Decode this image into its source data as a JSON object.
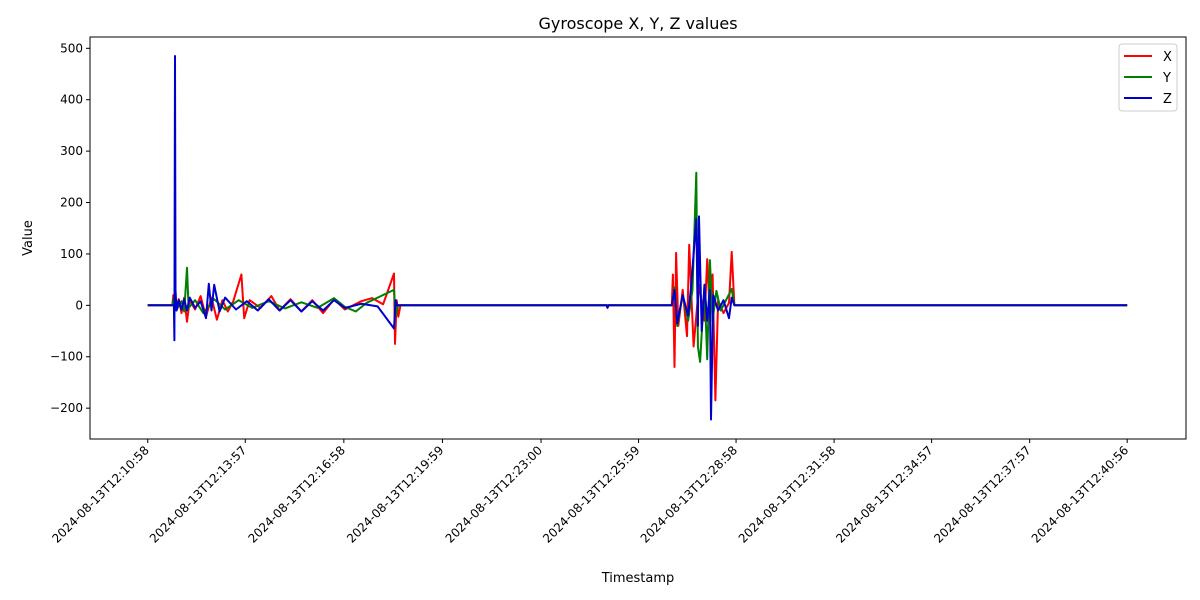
{
  "chart_data": {
    "type": "line",
    "title": "Gyroscope X, Y, Z values",
    "xlabel": "Timestamp",
    "ylabel": "Value",
    "x_ticks": [
      "2024-08-13T12:10:58",
      "2024-08-13T12:13:57",
      "2024-08-13T12:16:58",
      "2024-08-13T12:19:59",
      "2024-08-13T12:23:00",
      "2024-08-13T12:25:59",
      "2024-08-13T12:28:58",
      "2024-08-13T12:31:58",
      "2024-08-13T12:34:57",
      "2024-08-13T12:37:57",
      "2024-08-13T12:40:56"
    ],
    "xlim": [
      "2024-08-13T12:09:12",
      "2024-08-13T12:42:44"
    ],
    "y_ticks": [
      500,
      400,
      300,
      200,
      100,
      0,
      -100,
      -200
    ],
    "y_tick_labels": [
      "500",
      "400",
      "300",
      "200",
      "100",
      "0",
      "−100",
      "−200"
    ],
    "ylim": [
      -260,
      522
    ],
    "grid": false,
    "legend_position": "top-right",
    "series": [
      {
        "name": "X",
        "color": "#ff0000",
        "points": [
          [
            "2024-08-13T12:10:58",
            0
          ],
          [
            "2024-08-13T12:11:43",
            0
          ],
          [
            "2024-08-13T12:11:45",
            20
          ],
          [
            "2024-08-13T12:11:47",
            -10
          ],
          [
            "2024-08-13T12:11:55",
            12
          ],
          [
            "2024-08-13T12:12:00",
            -15
          ],
          [
            "2024-08-13T12:12:05",
            15
          ],
          [
            "2024-08-13T12:12:10",
            -32
          ],
          [
            "2024-08-13T12:12:15",
            10
          ],
          [
            "2024-08-13T12:12:25",
            -8
          ],
          [
            "2024-08-13T12:12:35",
            18
          ],
          [
            "2024-08-13T12:12:45",
            -22
          ],
          [
            "2024-08-13T12:12:55",
            15
          ],
          [
            "2024-08-13T12:13:05",
            -28
          ],
          [
            "2024-08-13T12:13:15",
            10
          ],
          [
            "2024-08-13T12:13:25",
            -12
          ],
          [
            "2024-08-13T12:13:35",
            8
          ],
          [
            "2024-08-13T12:13:50",
            60
          ],
          [
            "2024-08-13T12:13:55",
            -25
          ],
          [
            "2024-08-13T12:14:05",
            10
          ],
          [
            "2024-08-13T12:14:25",
            -5
          ],
          [
            "2024-08-13T12:14:45",
            18
          ],
          [
            "2024-08-13T12:15:00",
            -10
          ],
          [
            "2024-08-13T12:15:20",
            12
          ],
          [
            "2024-08-13T12:15:40",
            -12
          ],
          [
            "2024-08-13T12:16:00",
            10
          ],
          [
            "2024-08-13T12:16:20",
            -15
          ],
          [
            "2024-08-13T12:16:40",
            12
          ],
          [
            "2024-08-13T12:17:00",
            -8
          ],
          [
            "2024-08-13T12:17:30",
            8
          ],
          [
            "2024-08-13T12:17:50",
            14
          ],
          [
            "2024-08-13T12:18:10",
            2
          ],
          [
            "2024-08-13T12:18:30",
            62
          ],
          [
            "2024-08-13T12:18:32",
            -75
          ],
          [
            "2024-08-13T12:18:35",
            10
          ],
          [
            "2024-08-13T12:18:38",
            -22
          ],
          [
            "2024-08-13T12:18:42",
            0
          ],
          [
            "2024-08-13T12:27:00",
            0
          ],
          [
            "2024-08-13T12:27:02",
            60
          ],
          [
            "2024-08-13T12:27:05",
            -120
          ],
          [
            "2024-08-13T12:27:08",
            102
          ],
          [
            "2024-08-13T12:27:12",
            -40
          ],
          [
            "2024-08-13T12:27:20",
            30
          ],
          [
            "2024-08-13T12:27:28",
            -60
          ],
          [
            "2024-08-13T12:27:32",
            118
          ],
          [
            "2024-08-13T12:27:40",
            -80
          ],
          [
            "2024-08-13T12:27:50",
            40
          ],
          [
            "2024-08-13T12:28:00",
            -30
          ],
          [
            "2024-08-13T12:28:05",
            90
          ],
          [
            "2024-08-13T12:28:10",
            -20
          ],
          [
            "2024-08-13T12:28:15",
            60
          ],
          [
            "2024-08-13T12:28:20",
            -185
          ],
          [
            "2024-08-13T12:28:25",
            10
          ],
          [
            "2024-08-13T12:28:35",
            -15
          ],
          [
            "2024-08-13T12:28:45",
            5
          ],
          [
            "2024-08-13T12:28:50",
            104
          ],
          [
            "2024-08-13T12:28:55",
            0
          ],
          [
            "2024-08-13T12:40:56",
            0
          ]
        ]
      },
      {
        "name": "Y",
        "color": "#008000",
        "points": [
          [
            "2024-08-13T12:10:58",
            0
          ],
          [
            "2024-08-13T12:11:43",
            0
          ],
          [
            "2024-08-13T12:11:46",
            15
          ],
          [
            "2024-08-13T12:11:50",
            -10
          ],
          [
            "2024-08-13T12:12:00",
            8
          ],
          [
            "2024-08-13T12:12:05",
            -12
          ],
          [
            "2024-08-13T12:12:10",
            73
          ],
          [
            "2024-08-13T12:12:13",
            -5
          ],
          [
            "2024-08-13T12:12:25",
            10
          ],
          [
            "2024-08-13T12:12:40",
            -15
          ],
          [
            "2024-08-13T12:13:00",
            12
          ],
          [
            "2024-08-13T12:13:20",
            -8
          ],
          [
            "2024-08-13T12:13:45",
            10
          ],
          [
            "2024-08-13T12:14:10",
            -5
          ],
          [
            "2024-08-13T12:14:40",
            8
          ],
          [
            "2024-08-13T12:15:10",
            -6
          ],
          [
            "2024-08-13T12:15:40",
            6
          ],
          [
            "2024-08-13T12:16:10",
            -5
          ],
          [
            "2024-08-13T12:16:40",
            14
          ],
          [
            "2024-08-13T12:17:00",
            -3
          ],
          [
            "2024-08-13T12:17:20",
            -12
          ],
          [
            "2024-08-13T12:17:40",
            5
          ],
          [
            "2024-08-13T12:18:30",
            30
          ],
          [
            "2024-08-13T12:18:33",
            -20
          ],
          [
            "2024-08-13T12:18:38",
            0
          ],
          [
            "2024-08-13T12:27:00",
            0
          ],
          [
            "2024-08-13T12:27:05",
            35
          ],
          [
            "2024-08-13T12:27:10",
            -40
          ],
          [
            "2024-08-13T12:27:20",
            20
          ],
          [
            "2024-08-13T12:27:30",
            -30
          ],
          [
            "2024-08-13T12:27:38",
            30
          ],
          [
            "2024-08-13T12:27:45",
            258
          ],
          [
            "2024-08-13T12:27:48",
            -80
          ],
          [
            "2024-08-13T12:27:52",
            -110
          ],
          [
            "2024-08-13T12:28:00",
            40
          ],
          [
            "2024-08-13T12:28:05",
            -105
          ],
          [
            "2024-08-13T12:28:10",
            88
          ],
          [
            "2024-08-13T12:28:15",
            -30
          ],
          [
            "2024-08-13T12:28:22",
            28
          ],
          [
            "2024-08-13T12:28:30",
            -10
          ],
          [
            "2024-08-13T12:28:50",
            32
          ],
          [
            "2024-08-13T12:28:55",
            0
          ],
          [
            "2024-08-13T12:40:56",
            0
          ]
        ]
      },
      {
        "name": "Z",
        "color": "#0000cc",
        "points": [
          [
            "2024-08-13T12:10:58",
            0
          ],
          [
            "2024-08-13T12:11:46",
            0
          ],
          [
            "2024-08-13T12:11:47",
            -68
          ],
          [
            "2024-08-13T12:11:48",
            485
          ],
          [
            "2024-08-13T12:11:49",
            30
          ],
          [
            "2024-08-13T12:11:51",
            -10
          ],
          [
            "2024-08-13T12:11:55",
            10
          ],
          [
            "2024-08-13T12:12:00",
            -8
          ],
          [
            "2024-08-13T12:12:05",
            12
          ],
          [
            "2024-08-13T12:12:10",
            -10
          ],
          [
            "2024-08-13T12:12:15",
            15
          ],
          [
            "2024-08-13T12:12:25",
            -5
          ],
          [
            "2024-08-13T12:12:35",
            8
          ],
          [
            "2024-08-13T12:12:45",
            -25
          ],
          [
            "2024-08-13T12:12:50",
            42
          ],
          [
            "2024-08-13T12:12:55",
            -10
          ],
          [
            "2024-08-13T12:13:00",
            40
          ],
          [
            "2024-08-13T12:13:10",
            -12
          ],
          [
            "2024-08-13T12:13:20",
            15
          ],
          [
            "2024-08-13T12:13:40",
            -8
          ],
          [
            "2024-08-13T12:14:00",
            8
          ],
          [
            "2024-08-13T12:14:20",
            -10
          ],
          [
            "2024-08-13T12:14:40",
            12
          ],
          [
            "2024-08-13T12:15:00",
            -10
          ],
          [
            "2024-08-13T12:15:20",
            10
          ],
          [
            "2024-08-13T12:15:40",
            -12
          ],
          [
            "2024-08-13T12:16:00",
            8
          ],
          [
            "2024-08-13T12:16:20",
            -10
          ],
          [
            "2024-08-13T12:16:40",
            10
          ],
          [
            "2024-08-13T12:17:00",
            -5
          ],
          [
            "2024-08-13T12:17:30",
            3
          ],
          [
            "2024-08-13T12:18:00",
            -2
          ],
          [
            "2024-08-13T12:18:30",
            -45
          ],
          [
            "2024-08-13T12:18:33",
            10
          ],
          [
            "2024-08-13T12:18:36",
            0
          ],
          [
            "2024-08-13T12:25:00",
            0
          ],
          [
            "2024-08-13T12:25:02",
            -5
          ],
          [
            "2024-08-13T12:25:04",
            0
          ],
          [
            "2024-08-13T12:27:00",
            0
          ],
          [
            "2024-08-13T12:27:05",
            30
          ],
          [
            "2024-08-13T12:27:10",
            -35
          ],
          [
            "2024-08-13T12:27:20",
            20
          ],
          [
            "2024-08-13T12:27:30",
            -20
          ],
          [
            "2024-08-13T12:27:35",
            30
          ],
          [
            "2024-08-13T12:27:45",
            168
          ],
          [
            "2024-08-13T12:27:48",
            -40
          ],
          [
            "2024-08-13T12:27:50",
            173
          ],
          [
            "2024-08-13T12:27:55",
            -50
          ],
          [
            "2024-08-13T12:28:00",
            40
          ],
          [
            "2024-08-13T12:28:05",
            -30
          ],
          [
            "2024-08-13T12:28:10",
            30
          ],
          [
            "2024-08-13T12:28:12",
            -222
          ],
          [
            "2024-08-13T12:28:16",
            20
          ],
          [
            "2024-08-13T12:28:25",
            -10
          ],
          [
            "2024-08-13T12:28:35",
            10
          ],
          [
            "2024-08-13T12:28:45",
            -25
          ],
          [
            "2024-08-13T12:28:50",
            15
          ],
          [
            "2024-08-13T12:28:55",
            0
          ],
          [
            "2024-08-13T12:40:56",
            0
          ]
        ]
      }
    ]
  }
}
